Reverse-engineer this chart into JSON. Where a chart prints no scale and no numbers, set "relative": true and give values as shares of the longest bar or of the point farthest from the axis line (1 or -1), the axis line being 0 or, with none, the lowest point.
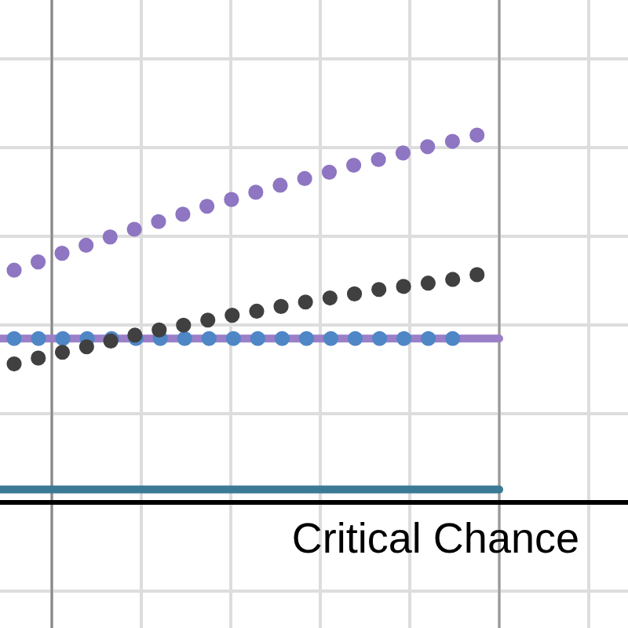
{
  "chart_data": {
    "type": "line",
    "relative": true,
    "xlabel": "Critical Chance",
    "grid": true,
    "line_style": "dotted",
    "categories": [
      null,
      null,
      null,
      null,
      null,
      null,
      null,
      null,
      null,
      null,
      null,
      null,
      null,
      null,
      null,
      null,
      null,
      null,
      null,
      null
    ],
    "ref_lines": [
      {
        "axis": "y",
        "value": 0.035,
        "color": "#3a7a94"
      },
      {
        "axis": "y",
        "value": 0.446,
        "color": "#9b7fc8"
      }
    ],
    "series": [
      {
        "color": "#4f86c6",
        "values": [
          0.446,
          0.446,
          0.446,
          0.446,
          0.446,
          0.446,
          0.446,
          0.446,
          0.446,
          0.446,
          0.446,
          0.446,
          0.446,
          0.446,
          0.446,
          0.446,
          0.446,
          0.446,
          0.446,
          null
        ]
      },
      {
        "color": "#404040",
        "values": [
          0.377,
          0.393,
          0.409,
          0.424,
          0.44,
          0.456,
          0.47,
          0.483,
          0.497,
          0.51,
          0.521,
          0.534,
          0.546,
          0.557,
          0.568,
          0.58,
          0.588,
          0.597,
          0.607,
          0.62
        ]
      },
      {
        "color": "#8e76c2",
        "values": [
          0.632,
          0.655,
          0.679,
          0.701,
          0.724,
          0.745,
          0.766,
          0.786,
          0.808,
          0.826,
          0.846,
          0.865,
          0.883,
          0.9,
          0.919,
          0.934,
          0.952,
          0.969,
          0.983,
          1
        ]
      }
    ]
  }
}
